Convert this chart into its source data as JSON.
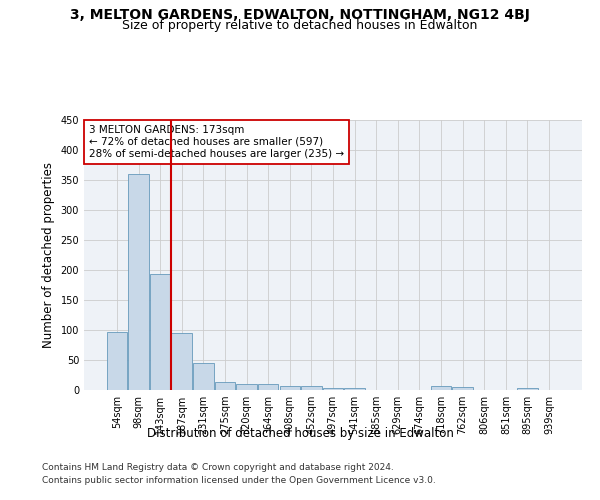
{
  "title": "3, MELTON GARDENS, EDWALTON, NOTTINGHAM, NG12 4BJ",
  "subtitle": "Size of property relative to detached houses in Edwalton",
  "xlabel": "Distribution of detached houses by size in Edwalton",
  "ylabel": "Number of detached properties",
  "footer_line1": "Contains HM Land Registry data © Crown copyright and database right 2024.",
  "footer_line2": "Contains public sector information licensed under the Open Government Licence v3.0.",
  "categories": [
    "54sqm",
    "98sqm",
    "143sqm",
    "187sqm",
    "231sqm",
    "275sqm",
    "320sqm",
    "364sqm",
    "408sqm",
    "452sqm",
    "497sqm",
    "541sqm",
    "585sqm",
    "629sqm",
    "674sqm",
    "718sqm",
    "762sqm",
    "806sqm",
    "851sqm",
    "895sqm",
    "939sqm"
  ],
  "values": [
    97,
    360,
    193,
    95,
    45,
    14,
    10,
    10,
    6,
    6,
    3,
    3,
    0,
    0,
    0,
    6,
    5,
    0,
    0,
    3,
    0
  ],
  "bar_color": "#c8d8e8",
  "bar_edge_color": "#6699bb",
  "vline_x": 2.5,
  "vline_color": "#cc0000",
  "annotation_text": "3 MELTON GARDENS: 173sqm\n← 72% of detached houses are smaller (597)\n28% of semi-detached houses are larger (235) →",
  "annotation_box_color": "#ffffff",
  "annotation_box_edge": "#cc0000",
  "ylim": [
    0,
    450
  ],
  "yticks": [
    0,
    50,
    100,
    150,
    200,
    250,
    300,
    350,
    400,
    450
  ],
  "grid_color": "#cccccc",
  "bg_color": "#eef2f7",
  "title_fontsize": 10,
  "subtitle_fontsize": 9,
  "axis_label_fontsize": 8.5,
  "tick_fontsize": 7,
  "footer_fontsize": 6.5,
  "annotation_fontsize": 7.5
}
